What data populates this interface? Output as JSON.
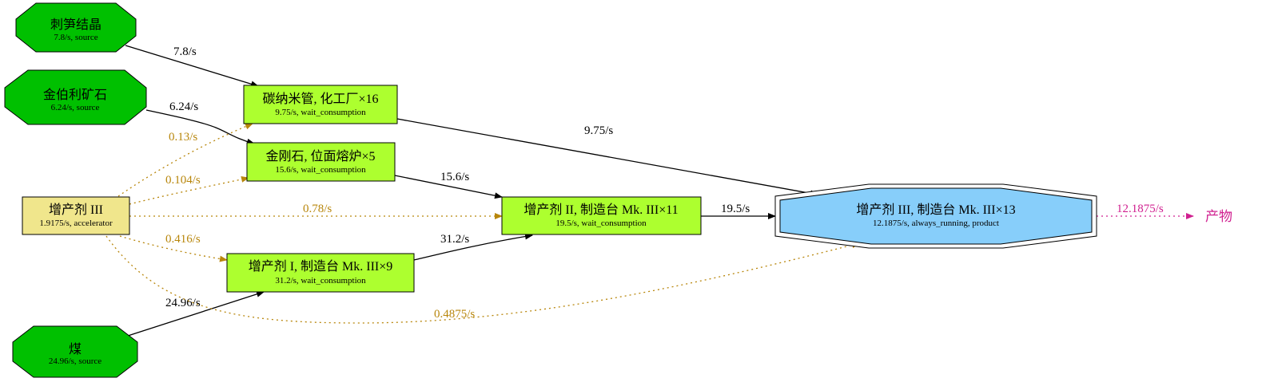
{
  "nodes": {
    "cishun": {
      "title": "刺笋结晶",
      "subtitle": "7.8/s, source",
      "fill": "#00c000"
    },
    "jinboli": {
      "title": "金伯利矿石",
      "subtitle": "6.24/s, source",
      "fill": "#00c000"
    },
    "mei": {
      "title": "煤",
      "subtitle": "24.96/s, source",
      "fill": "#00c000"
    },
    "zengchan3_src": {
      "title": "增产剂 III",
      "subtitle": "1.9175/s, accelerator",
      "fill": "#f0e68c"
    },
    "tannami": {
      "title": "碳纳米管, 化工厂×16",
      "subtitle": "9.75/s, wait_consumption",
      "fill": "#adff2f"
    },
    "jingangshi": {
      "title": "金刚石, 位面熔炉×5",
      "subtitle": "15.6/s, wait_consumption",
      "fill": "#adff2f"
    },
    "zengchan2": {
      "title": "增产剂 II, 制造台 Mk. III×11",
      "subtitle": "19.5/s, wait_consumption",
      "fill": "#adff2f"
    },
    "zengchan1": {
      "title": "增产剂 I, 制造台 Mk. III×9",
      "subtitle": "31.2/s, wait_consumption",
      "fill": "#adff2f"
    },
    "product": {
      "title": "增产剂 III, 制造台 Mk. III×13",
      "subtitle": "12.1875/s, always_running, product",
      "fill": "#87cefa"
    }
  },
  "edges": {
    "cishun_tannami": "7.8/s",
    "jinboli_jingangshi": "6.24/s",
    "mei_zengchan1": "24.96/s",
    "tannami_product": "9.75/s",
    "jingangshi_zengchan2": "15.6/s",
    "zengchan1_zengchan2": "31.2/s",
    "zengchan2_product": "19.5/s",
    "acc_tannami": "0.13/s",
    "acc_jingangshi": "0.104/s",
    "acc_zengchan2": "0.78/s",
    "acc_zengchan1": "0.416/s",
    "acc_product": "0.4875/s",
    "product_out": "12.1875/s"
  },
  "sink": {
    "label": "产物"
  },
  "colors": {
    "edge": "#000000",
    "accelerator_edge": "#b8860b",
    "output_edge": "#d02090"
  }
}
